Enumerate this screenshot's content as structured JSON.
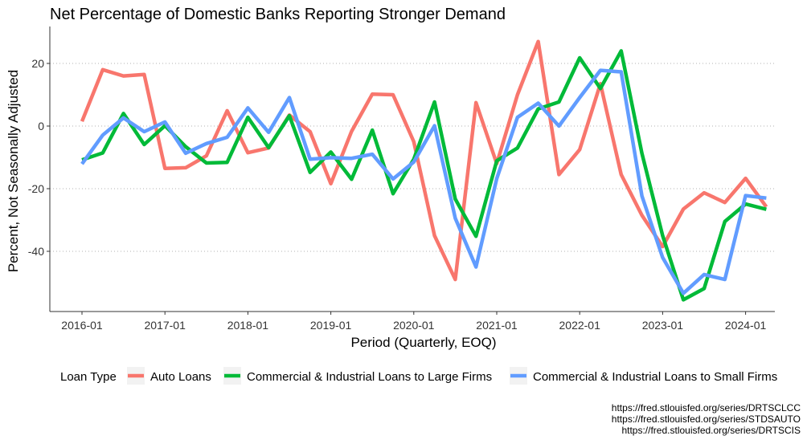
{
  "chart_data": {
    "type": "line",
    "title": "Net Percentage of Domestic Banks Reporting Stronger Demand",
    "xlabel": "Period (Quarterly, EOQ)",
    "ylabel": "Percent, Not Seasonally Adjusted",
    "x_ticks": [
      "2016-01",
      "2017-01",
      "2018-01",
      "2019-01",
      "2020-01",
      "2021-01",
      "2022-01",
      "2023-01",
      "2024-01"
    ],
    "y_ticks": [
      20,
      0,
      -20,
      -40
    ],
    "ylim": [
      -59,
      31
    ],
    "grid": "horizontal dotted",
    "legend": {
      "title": "Loan Type",
      "position": "bottom"
    },
    "x": [
      "2016-01",
      "2016-04",
      "2016-07",
      "2016-10",
      "2017-01",
      "2017-04",
      "2017-07",
      "2017-10",
      "2018-01",
      "2018-04",
      "2018-07",
      "2018-10",
      "2019-01",
      "2019-04",
      "2019-07",
      "2019-10",
      "2020-01",
      "2020-04",
      "2020-07",
      "2020-10",
      "2021-01",
      "2021-04",
      "2021-07",
      "2021-10",
      "2022-01",
      "2022-04",
      "2022-07",
      "2022-10",
      "2023-01",
      "2023-04",
      "2023-07",
      "2023-10",
      "2024-01",
      "2024-04"
    ],
    "series": [
      {
        "name": "Auto Loans",
        "color": "#F8766D",
        "values": [
          1.5,
          18,
          16,
          16.5,
          -13.5,
          -13.3,
          -9.5,
          4.9,
          -8.5,
          -7,
          3.5,
          -1.8,
          -18.4,
          -1.7,
          10.2,
          10,
          -5,
          -35,
          -49,
          7.5,
          -12,
          10,
          27,
          -15.5,
          -7.5,
          13.5,
          -15.5,
          -28.5,
          -38.5,
          -26.5,
          -21.3,
          -24.4,
          -16.7,
          -25.8
        ]
      },
      {
        "name": "Commercial & Industrial Loans to Large Firms",
        "color": "#00BA38",
        "values": [
          -10.8,
          -8.6,
          4,
          -5.9,
          0.1,
          -6.6,
          -11.8,
          -11.6,
          2.8,
          -6.9,
          3.3,
          -14.8,
          -8.3,
          -17,
          -1.3,
          -21.6,
          -10.6,
          7.7,
          -23.3,
          -35.2,
          -11.1,
          -7,
          5.5,
          7.7,
          21.8,
          12,
          24,
          -8.7,
          -35,
          -55.5,
          -51.9,
          -30.5,
          -24.9,
          -26.6
        ]
      },
      {
        "name": "Commercial & Industrial Loans to Small Firms",
        "color": "#619CFF",
        "values": [
          -12.1,
          -2.9,
          2.6,
          -1.8,
          1.3,
          -8.7,
          -5.6,
          -3.6,
          5.8,
          -2,
          9.1,
          -10.6,
          -10.1,
          -10.3,
          -9,
          -16.9,
          -11.5,
          0.1,
          -29.4,
          -45,
          -16.8,
          2.8,
          7.3,
          0,
          9.1,
          17.8,
          17.3,
          -22.3,
          -42,
          -53.4,
          -47.4,
          -49,
          -22.2,
          -23
        ]
      }
    ]
  },
  "sources": [
    "https://fred.stlouisfed.org/series/DRTSCLCC",
    "https://fred.stlouisfed.org/series/STDSAUTO",
    "https://fred.stlouisfed.org/series/DRTSCIS"
  ]
}
